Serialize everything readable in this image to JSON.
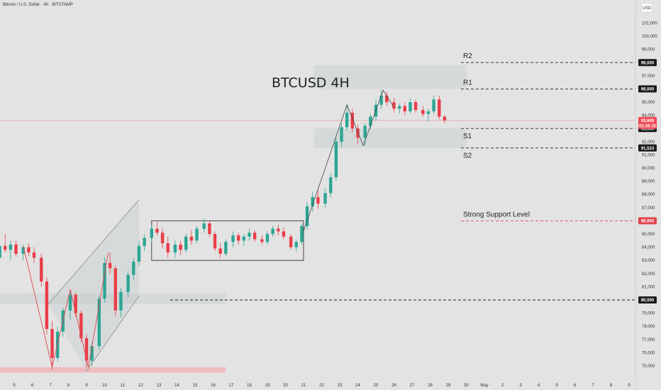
{
  "header": {
    "symbol_title": "Bitcoin / U.S. Dollar · 4h · BITSTAMP",
    "currency": "USD"
  },
  "chart_data": {
    "type": "candlestick",
    "title": "BTCUSD 4H",
    "y_ticks": [
      75000,
      76000,
      77000,
      78000,
      79000,
      80000,
      81000,
      82000,
      83000,
      84000,
      85000,
      86000,
      87000,
      88000,
      89000,
      90000,
      91000,
      92000,
      93000,
      94000,
      95000,
      96000,
      97000,
      98000,
      99000,
      100000,
      101000
    ],
    "x_ticks": [
      {
        "label": "5",
        "day": 5
      },
      {
        "label": "6",
        "day": 6
      },
      {
        "label": "7",
        "day": 7
      },
      {
        "label": "8",
        "day": 8
      },
      {
        "label": "9",
        "day": 9
      },
      {
        "label": "10",
        "day": 10
      },
      {
        "label": "11",
        "day": 11
      },
      {
        "label": "12",
        "day": 12
      },
      {
        "label": "13",
        "day": 13
      },
      {
        "label": "14",
        "day": 14
      },
      {
        "label": "15",
        "day": 15
      },
      {
        "label": "16",
        "day": 16
      },
      {
        "label": "17",
        "day": 17
      },
      {
        "label": "18",
        "day": 18
      },
      {
        "label": "19",
        "day": 19
      },
      {
        "label": "20",
        "day": 20
      },
      {
        "label": "21",
        "day": 21
      },
      {
        "label": "22",
        "day": 22
      },
      {
        "label": "23",
        "day": 23
      },
      {
        "label": "24",
        "day": 24
      },
      {
        "label": "25",
        "day": 25
      },
      {
        "label": "26",
        "day": 26
      },
      {
        "label": "27",
        "day": 27
      },
      {
        "label": "28",
        "day": 28
      },
      {
        "label": "29",
        "day": 29
      },
      {
        "label": "30",
        "day": 30
      },
      {
        "label": "May",
        "day": 31
      },
      {
        "label": "2",
        "day": 32
      },
      {
        "label": "3",
        "day": 33
      },
      {
        "label": "4",
        "day": 34
      },
      {
        "label": "5",
        "day": 35
      },
      {
        "label": "6",
        "day": 36
      },
      {
        "label": "7",
        "day": 37
      },
      {
        "label": "8",
        "day": 38
      },
      {
        "label": "9",
        "day": 39
      }
    ],
    "day_range": [
      4.2,
      39.8
    ],
    "price_range": [
      74450,
      102250
    ],
    "levels": [
      {
        "label": "R2",
        "price": 98000,
        "tag": "98,000",
        "style": "dashed",
        "color": "#222222",
        "tag_color": "#1a1a1a"
      },
      {
        "label": "R1",
        "price": 96000,
        "tag": "96,000",
        "style": "dashed",
        "color": "#222222",
        "tag_color": "#1a1a1a"
      },
      {
        "label": "S1",
        "price": 93000,
        "tag": "93,000",
        "style": "dashed",
        "color": "#222222",
        "tag_color": "#1a1a1a"
      },
      {
        "label": "S2",
        "price": 91523,
        "tag": "91,523",
        "style": "dashed",
        "color": "#222222",
        "tag_color": "#1a1a1a"
      },
      {
        "label": "Strong Support Level",
        "price": 86000,
        "tag": "86,000",
        "style": "dashed",
        "color": "#e0444e",
        "tag_color": "#e0444e"
      },
      {
        "label": "",
        "price": 80000,
        "tag": "80,000",
        "style": "dashed",
        "color": "#222222",
        "tag_color": "#1a1a1a"
      }
    ],
    "current_price": {
      "price": 93609,
      "tag": "93,609",
      "countdown": "02:26:15",
      "color": "#ef4b55"
    },
    "zones": [
      {
        "day0": 21.6,
        "day1": 30.0,
        "p0": 96000,
        "p1": 97800
      },
      {
        "day0": 21.6,
        "day1": 30.0,
        "p0": 91523,
        "p1": 93000
      },
      {
        "day0": 4.2,
        "day1": 16.7,
        "p0": 79700,
        "p1": 80500
      },
      {
        "day0": 4.2,
        "day1": 16.7,
        "p0": 74500,
        "p1": 74900
      }
    ],
    "consolidation_box": {
      "day0": 12.6,
      "day1": 21.0,
      "p0": 83000,
      "p1": 86000
    },
    "channel": {
      "upper": [
        [
          6.9,
          79700
        ],
        [
          11.9,
          87600
        ]
      ],
      "lower": [
        [
          9.0,
          74600
        ],
        [
          11.9,
          80300
        ]
      ]
    },
    "swing_path": [
      [
        5.5,
        84100
      ],
      [
        7.1,
        74900
      ],
      [
        8.1,
        80800
      ],
      [
        9.1,
        74900
      ],
      [
        10.2,
        83600
      ]
    ],
    "zigzag_path": [
      [
        21.0,
        85200
      ],
      [
        23.4,
        94800
      ],
      [
        24.3,
        91700
      ],
      [
        25.4,
        95900
      ],
      [
        26.0,
        94600
      ]
    ],
    "series": [
      {
        "day": 4.2,
        "o": 83200,
        "h": 84400,
        "l": 82500,
        "c": 84100
      },
      {
        "day": 4.5,
        "o": 84100,
        "h": 85000,
        "l": 83600,
        "c": 83800
      },
      {
        "day": 4.8,
        "o": 83800,
        "h": 84500,
        "l": 83000,
        "c": 84200
      },
      {
        "day": 5.1,
        "o": 84200,
        "h": 84500,
        "l": 83300,
        "c": 83500
      },
      {
        "day": 5.5,
        "o": 83500,
        "h": 84200,
        "l": 83000,
        "c": 84000
      },
      {
        "day": 5.8,
        "o": 84000,
        "h": 84300,
        "l": 83300,
        "c": 83600
      },
      {
        "day": 6.1,
        "o": 83600,
        "h": 84000,
        "l": 82800,
        "c": 83200
      },
      {
        "day": 6.5,
        "o": 83200,
        "h": 83500,
        "l": 81000,
        "c": 81400
      },
      {
        "day": 6.8,
        "o": 81400,
        "h": 81700,
        "l": 77400,
        "c": 77800
      },
      {
        "day": 7.1,
        "o": 77800,
        "h": 78400,
        "l": 74700,
        "c": 75600
      },
      {
        "day": 7.4,
        "o": 75600,
        "h": 78000,
        "l": 75300,
        "c": 77600
      },
      {
        "day": 7.7,
        "o": 77600,
        "h": 79400,
        "l": 77200,
        "c": 79200
      },
      {
        "day": 8.1,
        "o": 79200,
        "h": 80800,
        "l": 78500,
        "c": 80400
      },
      {
        "day": 8.4,
        "o": 80400,
        "h": 80600,
        "l": 78700,
        "c": 79000
      },
      {
        "day": 8.7,
        "o": 79000,
        "h": 79200,
        "l": 76800,
        "c": 77100
      },
      {
        "day": 9.0,
        "o": 77100,
        "h": 77400,
        "l": 74900,
        "c": 75400
      },
      {
        "day": 9.3,
        "o": 75400,
        "h": 76800,
        "l": 75000,
        "c": 76500
      },
      {
        "day": 9.7,
        "o": 76500,
        "h": 80300,
        "l": 76200,
        "c": 80100
      },
      {
        "day": 10.0,
        "o": 80100,
        "h": 83200,
        "l": 79800,
        "c": 82800
      },
      {
        "day": 10.3,
        "o": 82800,
        "h": 83600,
        "l": 82000,
        "c": 82400
      },
      {
        "day": 10.6,
        "o": 82400,
        "h": 82600,
        "l": 78800,
        "c": 79200
      },
      {
        "day": 10.9,
        "o": 79200,
        "h": 80900,
        "l": 78700,
        "c": 80600
      },
      {
        "day": 11.3,
        "o": 80600,
        "h": 82200,
        "l": 80200,
        "c": 81900
      },
      {
        "day": 11.6,
        "o": 81900,
        "h": 83200,
        "l": 81500,
        "c": 82900
      },
      {
        "day": 11.9,
        "o": 82900,
        "h": 84500,
        "l": 82600,
        "c": 84100
      },
      {
        "day": 12.2,
        "o": 84100,
        "h": 85000,
        "l": 83700,
        "c": 84700
      },
      {
        "day": 12.6,
        "o": 84700,
        "h": 85700,
        "l": 84300,
        "c": 85400
      },
      {
        "day": 12.9,
        "o": 85400,
        "h": 85900,
        "l": 84900,
        "c": 85100
      },
      {
        "day": 13.2,
        "o": 85100,
        "h": 85400,
        "l": 83900,
        "c": 84300
      },
      {
        "day": 13.5,
        "o": 84300,
        "h": 84800,
        "l": 83200,
        "c": 83600
      },
      {
        "day": 13.9,
        "o": 83600,
        "h": 84500,
        "l": 83200,
        "c": 84200
      },
      {
        "day": 14.2,
        "o": 84200,
        "h": 84500,
        "l": 83400,
        "c": 83800
      },
      {
        "day": 14.5,
        "o": 83800,
        "h": 85000,
        "l": 83600,
        "c": 84800
      },
      {
        "day": 14.8,
        "o": 84800,
        "h": 85300,
        "l": 84200,
        "c": 84500
      },
      {
        "day": 15.1,
        "o": 84500,
        "h": 85600,
        "l": 84300,
        "c": 85400
      },
      {
        "day": 15.5,
        "o": 85400,
        "h": 86200,
        "l": 85100,
        "c": 85800
      },
      {
        "day": 15.8,
        "o": 85800,
        "h": 86000,
        "l": 84800,
        "c": 85000
      },
      {
        "day": 16.1,
        "o": 85000,
        "h": 85200,
        "l": 83700,
        "c": 83900
      },
      {
        "day": 16.4,
        "o": 83900,
        "h": 84300,
        "l": 83200,
        "c": 83500
      },
      {
        "day": 16.7,
        "o": 83500,
        "h": 84600,
        "l": 83300,
        "c": 84400
      },
      {
        "day": 17.1,
        "o": 84400,
        "h": 85200,
        "l": 84000,
        "c": 84900
      },
      {
        "day": 17.4,
        "o": 84900,
        "h": 85100,
        "l": 84200,
        "c": 84500
      },
      {
        "day": 17.7,
        "o": 84500,
        "h": 85000,
        "l": 84100,
        "c": 84800
      },
      {
        "day": 18.0,
        "o": 84800,
        "h": 85400,
        "l": 84500,
        "c": 85100
      },
      {
        "day": 18.3,
        "o": 85100,
        "h": 85300,
        "l": 84400,
        "c": 84600
      },
      {
        "day": 18.7,
        "o": 84600,
        "h": 84900,
        "l": 84200,
        "c": 84400
      },
      {
        "day": 19.0,
        "o": 84400,
        "h": 85200,
        "l": 84200,
        "c": 85000
      },
      {
        "day": 19.3,
        "o": 85000,
        "h": 85600,
        "l": 84800,
        "c": 85400
      },
      {
        "day": 19.6,
        "o": 85400,
        "h": 85700,
        "l": 84900,
        "c": 85200
      },
      {
        "day": 19.9,
        "o": 85200,
        "h": 85500,
        "l": 84600,
        "c": 84800
      },
      {
        "day": 20.3,
        "o": 84800,
        "h": 85000,
        "l": 83800,
        "c": 84000
      },
      {
        "day": 20.6,
        "o": 84000,
        "h": 84600,
        "l": 83700,
        "c": 84400
      },
      {
        "day": 20.9,
        "o": 84400,
        "h": 85800,
        "l": 84200,
        "c": 85600
      },
      {
        "day": 21.2,
        "o": 85600,
        "h": 87400,
        "l": 85300,
        "c": 87100
      },
      {
        "day": 21.5,
        "o": 87100,
        "h": 88200,
        "l": 86700,
        "c": 87800
      },
      {
        "day": 21.8,
        "o": 87800,
        "h": 88300,
        "l": 86900,
        "c": 87300
      },
      {
        "day": 22.2,
        "o": 87300,
        "h": 88500,
        "l": 87000,
        "c": 88100
      },
      {
        "day": 22.5,
        "o": 88100,
        "h": 89600,
        "l": 87800,
        "c": 89300
      },
      {
        "day": 22.8,
        "o": 89300,
        "h": 92300,
        "l": 89000,
        "c": 92000
      },
      {
        "day": 23.1,
        "o": 92000,
        "h": 93400,
        "l": 91600,
        "c": 93100
      },
      {
        "day": 23.4,
        "o": 93100,
        "h": 94800,
        "l": 92800,
        "c": 94200
      },
      {
        "day": 23.7,
        "o": 94200,
        "h": 94500,
        "l": 92700,
        "c": 93000
      },
      {
        "day": 24.0,
        "o": 93000,
        "h": 93300,
        "l": 91800,
        "c": 92300
      },
      {
        "day": 24.4,
        "o": 92300,
        "h": 93400,
        "l": 91700,
        "c": 93200
      },
      {
        "day": 24.7,
        "o": 93200,
        "h": 94100,
        "l": 92900,
        "c": 93900
      },
      {
        "day": 25.0,
        "o": 93900,
        "h": 95200,
        "l": 93600,
        "c": 94800
      },
      {
        "day": 25.3,
        "o": 94800,
        "h": 95900,
        "l": 94500,
        "c": 95500
      },
      {
        "day": 25.6,
        "o": 95500,
        "h": 95800,
        "l": 94700,
        "c": 95000
      },
      {
        "day": 26.0,
        "o": 95000,
        "h": 95300,
        "l": 94200,
        "c": 94500
      },
      {
        "day": 26.3,
        "o": 94500,
        "h": 94900,
        "l": 94100,
        "c": 94700
      },
      {
        "day": 26.6,
        "o": 94700,
        "h": 95000,
        "l": 94000,
        "c": 94300
      },
      {
        "day": 26.9,
        "o": 94300,
        "h": 95300,
        "l": 94100,
        "c": 95000
      },
      {
        "day": 27.2,
        "o": 95000,
        "h": 95200,
        "l": 94200,
        "c": 94400
      },
      {
        "day": 27.6,
        "o": 94400,
        "h": 94700,
        "l": 93900,
        "c": 94100
      },
      {
        "day": 27.9,
        "o": 94100,
        "h": 94500,
        "l": 93500,
        "c": 94300
      },
      {
        "day": 28.2,
        "o": 94300,
        "h": 95500,
        "l": 94100,
        "c": 95200
      },
      {
        "day": 28.5,
        "o": 95200,
        "h": 95500,
        "l": 93700,
        "c": 93900
      },
      {
        "day": 28.8,
        "o": 93900,
        "h": 94000,
        "l": 93400,
        "c": 93609
      }
    ]
  }
}
